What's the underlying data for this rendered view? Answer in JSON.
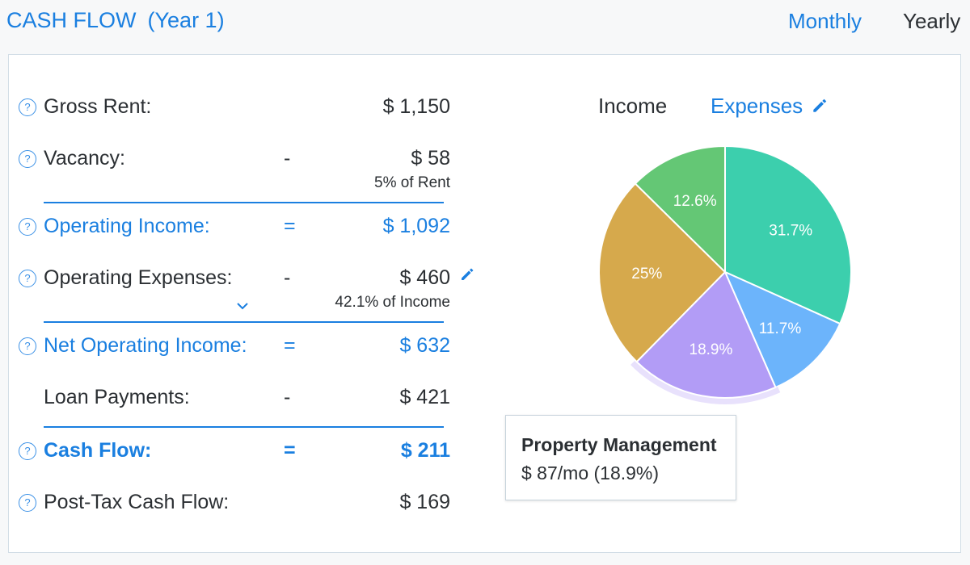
{
  "header": {
    "title": "CASH FLOW",
    "subtitle": "(Year 1)",
    "monthly": "Monthly",
    "yearly": "Yearly"
  },
  "rows": {
    "gross_rent": {
      "label": "Gross Rent:",
      "value": "$ 1,150"
    },
    "vacancy": {
      "label": "Vacancy:",
      "op": "-",
      "value": "$ 58",
      "note": "5% of Rent"
    },
    "operating_income": {
      "label": "Operating Income:",
      "op": "=",
      "value": "$ 1,092"
    },
    "operating_expenses": {
      "label": "Operating Expenses:",
      "op": "-",
      "value": "$ 460",
      "note": "42.1% of Income"
    },
    "noi": {
      "label": "Net Operating Income:",
      "op": "=",
      "value": "$ 632"
    },
    "loan": {
      "label": "Loan Payments:",
      "op": "-",
      "value": "$ 421"
    },
    "cash_flow": {
      "label": "Cash Flow:",
      "op": "=",
      "value": "$ 211"
    },
    "post_tax": {
      "label": "Post-Tax Cash Flow:",
      "value": "$ 169"
    }
  },
  "help_glyph": "?",
  "tabs": {
    "income": "Income",
    "expenses": "Expenses"
  },
  "chart_data": {
    "type": "pie",
    "start_angle_deg": 0,
    "highlighted_index": 2,
    "slices": [
      {
        "label": "31.7%",
        "value": 31.7,
        "color": "#3ccfad"
      },
      {
        "label": "11.7%",
        "value": 11.7,
        "color": "#6cb4fb"
      },
      {
        "label": "18.9%",
        "value": 18.9,
        "color": "#b29cf6"
      },
      {
        "label": "25%",
        "value": 25.0,
        "color": "#d6a94c"
      },
      {
        "label": "12.6%",
        "value": 12.6,
        "color": "#64c775"
      }
    ]
  },
  "tooltip": {
    "title": "Property Management",
    "value": "$ 87/mo  (18.9%)"
  }
}
